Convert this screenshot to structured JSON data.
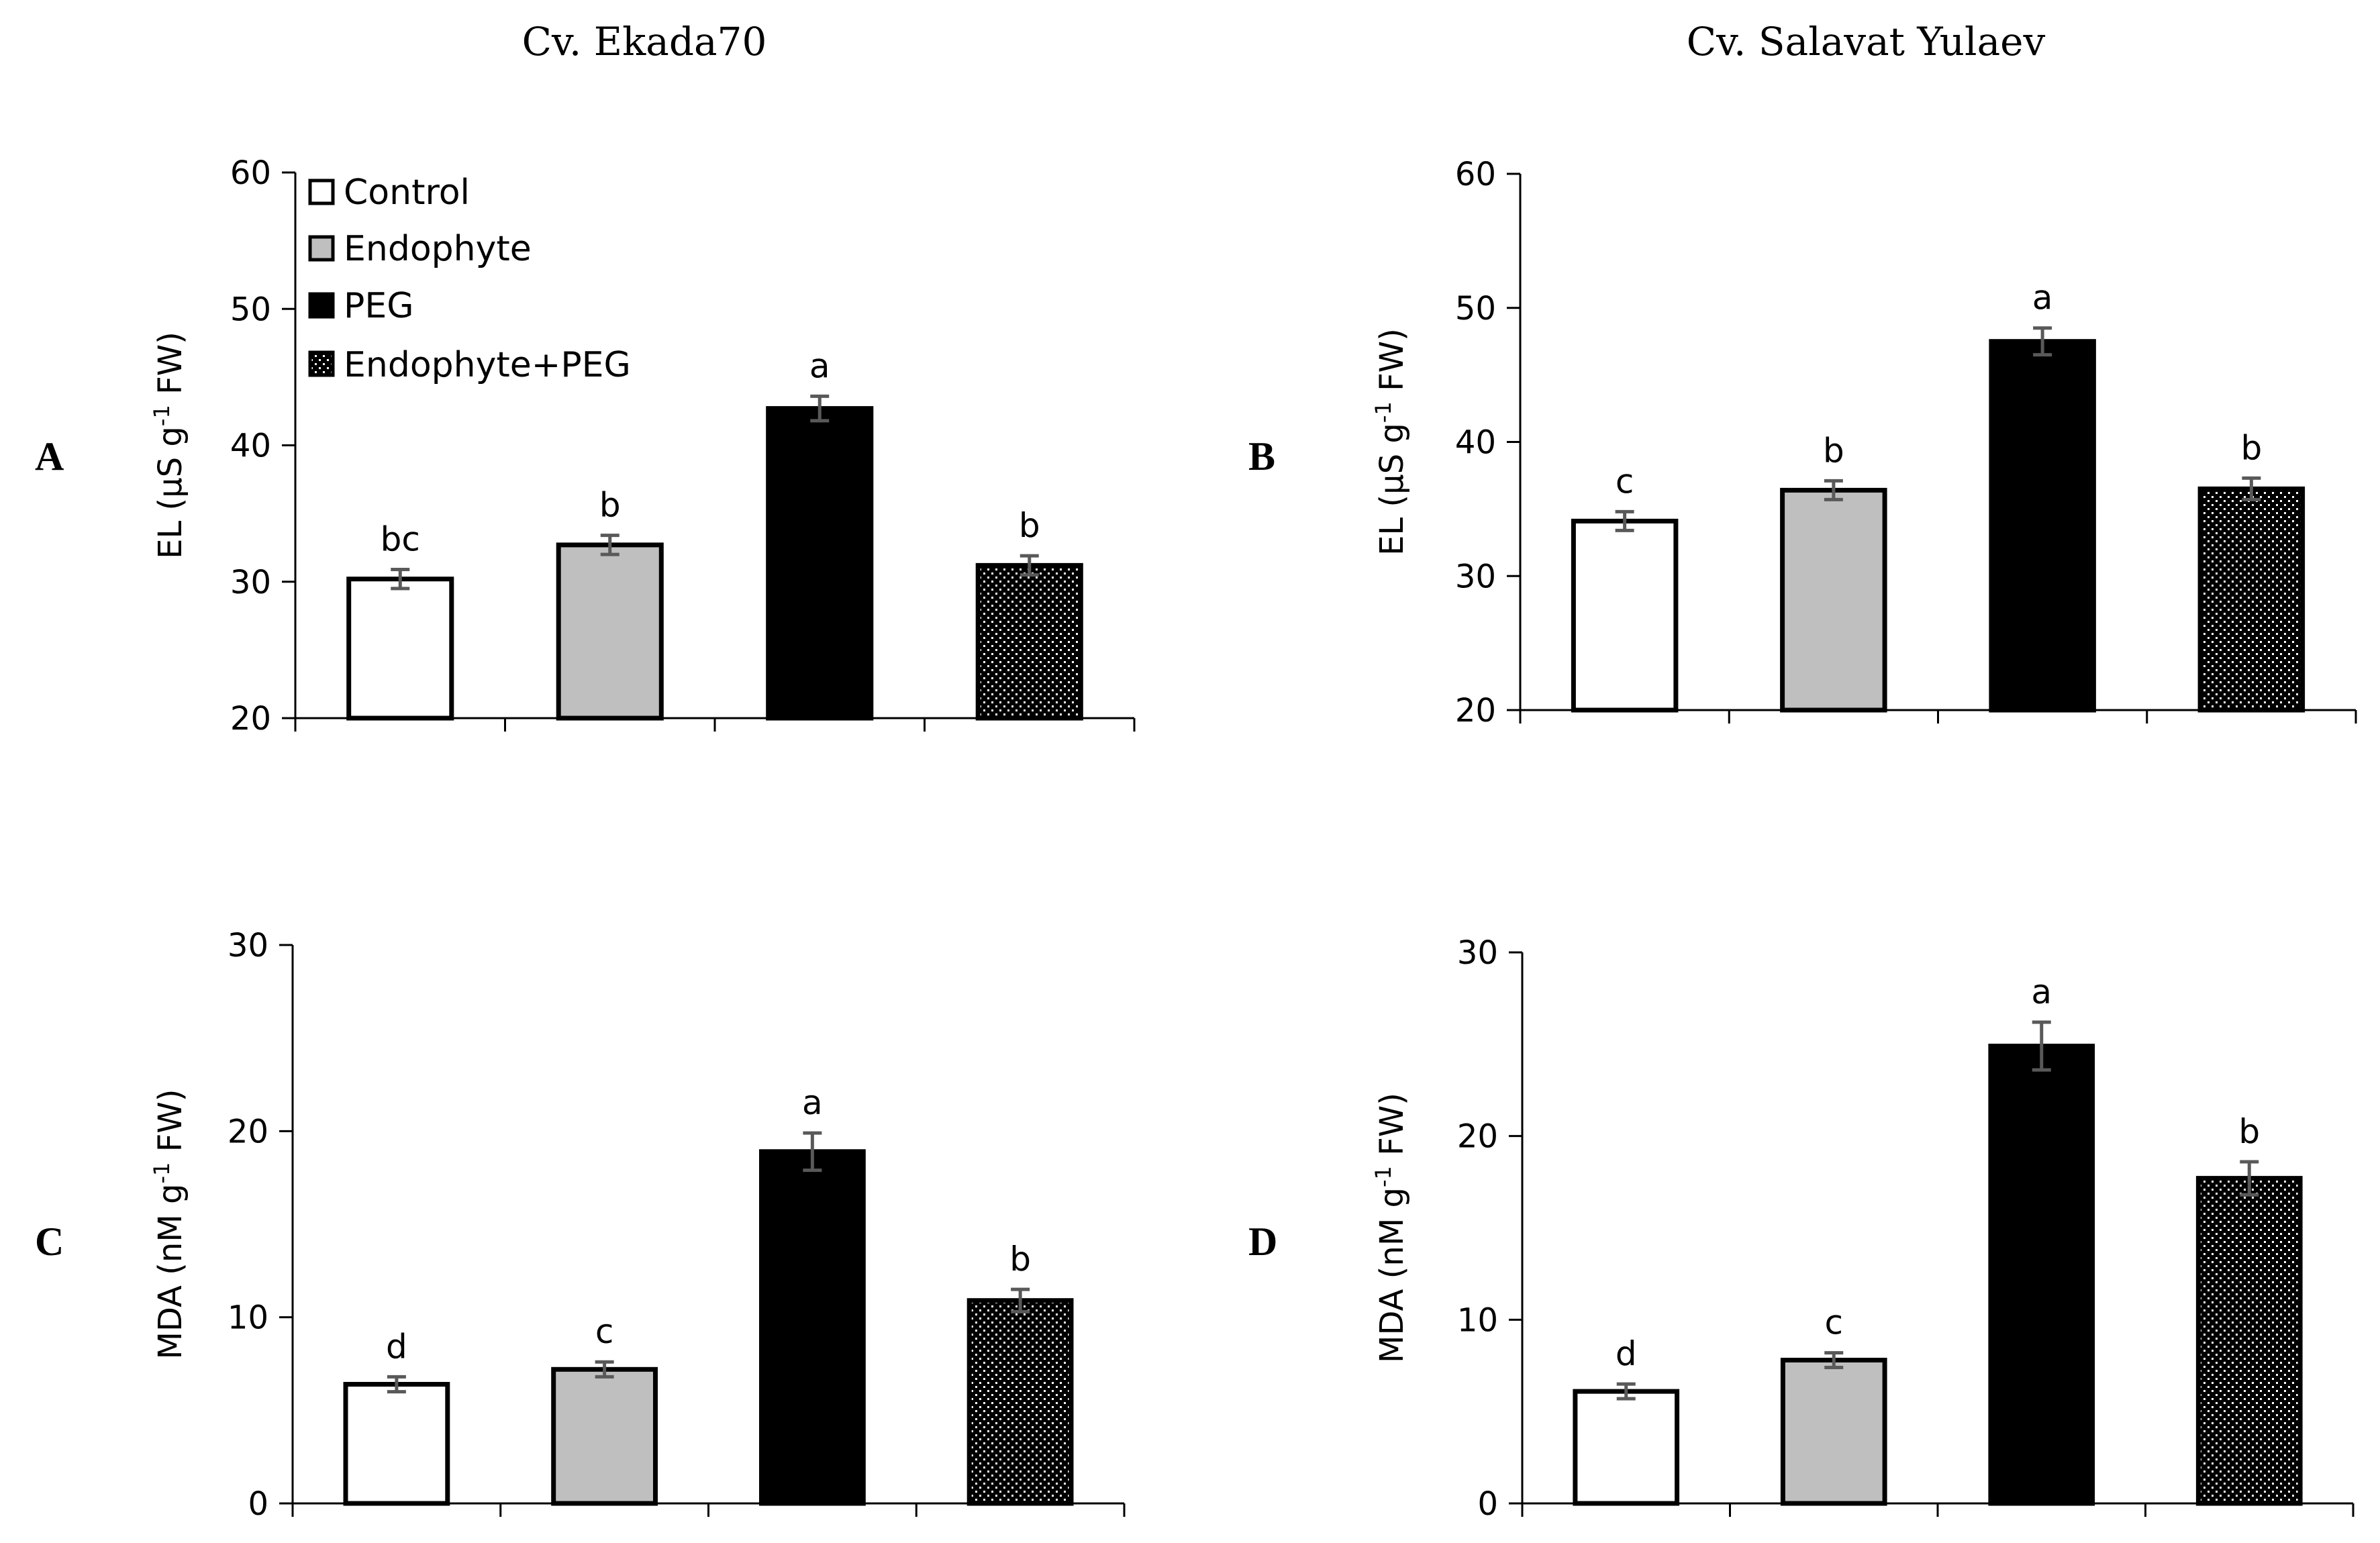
{
  "colors": {
    "control": "#ffffff",
    "endophyte": "#bfbfbf",
    "peg": "#000000",
    "errorbar": "#595959",
    "axis": "#000000"
  },
  "titles": {
    "left": "Cv. Ekada70",
    "right": "Cv. Salavat Yulaev"
  },
  "legend": {
    "entries": [
      "Control",
      "Endophyte",
      "PEG",
      "Endophyte+PEG"
    ]
  },
  "chart_data": [
    {
      "type": "bar",
      "panel": "A",
      "cultivar": "Cv. Ekada70",
      "categories": [
        "Control",
        "Endophyte",
        "PEG",
        "Endophyte+PEG"
      ],
      "values": [
        30.2,
        32.7,
        42.7,
        31.2
      ],
      "errors": [
        0.7,
        0.7,
        0.9,
        0.7
      ],
      "letters": [
        "bc",
        "b",
        "a",
        "b"
      ],
      "ylabel": "EL (µS g-1 FW)",
      "ylabel_main": "EL (µS g",
      "ylabel_sup": "-1",
      "ylabel_end": " FW)",
      "ylim": [
        20,
        60
      ],
      "yticks": [
        "20",
        "30",
        "40",
        "50",
        "60"
      ]
    },
    {
      "type": "bar",
      "panel": "B",
      "cultivar": "Cv. Salavat Yulaev",
      "categories": [
        "Control",
        "Endophyte",
        "PEG",
        "Endophyte+PEG"
      ],
      "values": [
        34.1,
        36.4,
        47.5,
        36.5
      ],
      "errors": [
        0.7,
        0.7,
        1.0,
        0.8
      ],
      "letters": [
        "c",
        "b",
        "a",
        "b"
      ],
      "ylabel": "EL (µS g-1 FW)",
      "ylabel_main": "EL (µS g",
      "ylabel_sup": "-1",
      "ylabel_end": " FW)",
      "ylim": [
        20,
        60
      ],
      "yticks": [
        "20",
        "30",
        "40",
        "50",
        "60"
      ]
    },
    {
      "type": "bar",
      "panel": "C",
      "cultivar": "Cv. Ekada70",
      "categories": [
        "Control",
        "Endophyte",
        "PEG",
        "Endophyte+PEG"
      ],
      "values": [
        6.4,
        7.2,
        18.9,
        10.9
      ],
      "errors": [
        0.4,
        0.4,
        1.0,
        0.6
      ],
      "letters": [
        "d",
        "c",
        "a",
        "b"
      ],
      "ylabel": "MDA (nM g-1 FW)",
      "ylabel_main": "MDA (nM g",
      "ylabel_sup": "-1",
      "ylabel_end": " FW)",
      "ylim": [
        0,
        30
      ],
      "yticks": [
        "0",
        "10",
        "20",
        "30"
      ]
    },
    {
      "type": "bar",
      "panel": "D",
      "cultivar": "Cv. Salavat Yulaev",
      "categories": [
        "Control",
        "Endophyte",
        "PEG",
        "Endophyte+PEG"
      ],
      "values": [
        6.1,
        7.8,
        24.9,
        17.7
      ],
      "errors": [
        0.4,
        0.4,
        1.3,
        0.9
      ],
      "letters": [
        "d",
        "c",
        "a",
        "b"
      ],
      "ylabel": "MDA (nM g-1 FW)",
      "ylabel_main": "MDA (nM g",
      "ylabel_sup": "-1",
      "ylabel_end": " FW)",
      "ylim": [
        0,
        30
      ],
      "yticks": [
        "0",
        "10",
        "20",
        "30"
      ]
    }
  ]
}
